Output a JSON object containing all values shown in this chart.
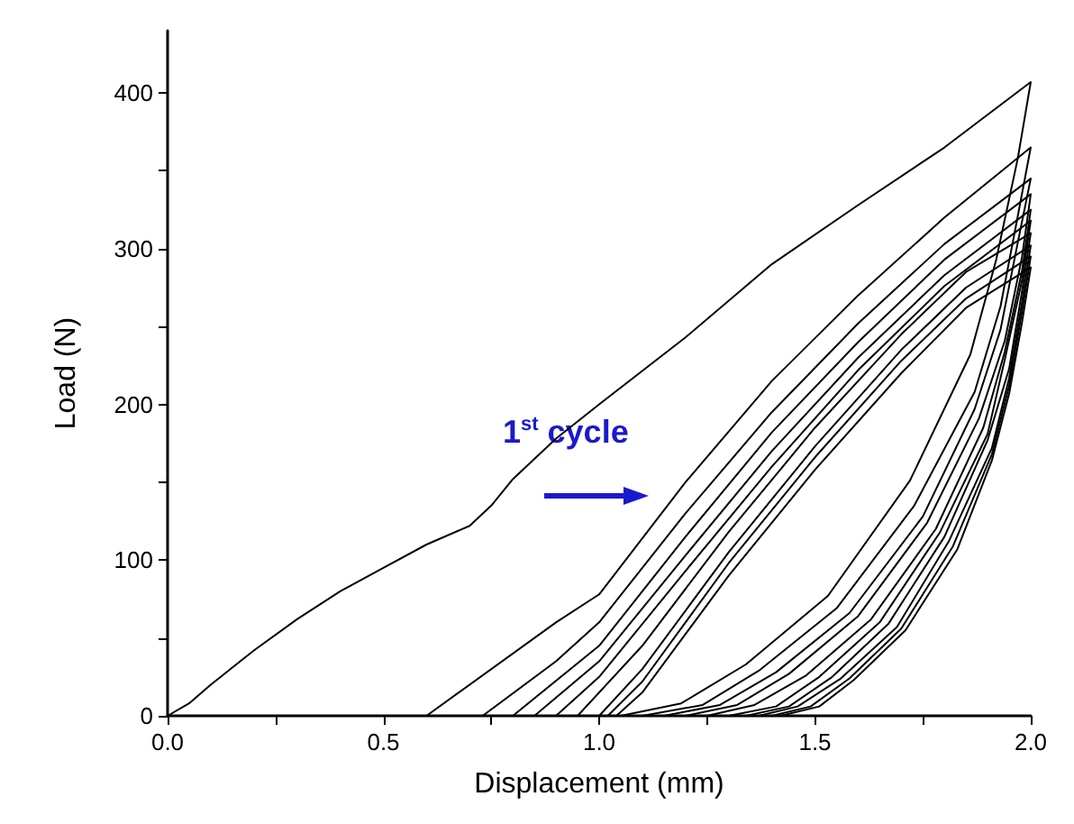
{
  "chart_data": {
    "type": "line",
    "xlabel": "Displacement (mm)",
    "ylabel": "Load (N)",
    "xlim": [
      0,
      2
    ],
    "ylim": [
      0,
      440
    ],
    "xticks": [
      {
        "value": 0,
        "label": "0.0"
      },
      {
        "value": 0.25,
        "label": null
      },
      0.5,
      {
        "value": 0.75,
        "label": null
      },
      {
        "value": 1,
        "label": "1.0"
      },
      {
        "value": 1.25,
        "label": null
      },
      1.5,
      {
        "value": 1.75,
        "label": null
      },
      {
        "value": 2,
        "label": "2.0"
      }
    ],
    "yticks": [
      0,
      {
        "value": 50,
        "label": null
      },
      100,
      {
        "value": 150,
        "label": null
      },
      200,
      {
        "value": 250,
        "label": null
      },
      300,
      {
        "value": 350,
        "label": null
      },
      400
    ],
    "grid": false,
    "marker": "none",
    "line_style": "solid",
    "annotations": [
      "1$^{st}$ cycle"
    ],
    "series": [
      {
        "color": "#000000",
        "x": [
          0,
          0.05,
          0.1,
          0.2,
          0.3,
          0.4,
          0.5,
          0.6,
          0.7,
          0.75,
          0.8,
          0.9,
          1.0,
          1.2,
          1.4,
          1.6,
          1.8,
          2.0,
          1.97,
          1.92,
          1.86,
          1.72,
          1.53,
          1.34,
          1.19,
          1.05
        ],
        "values": [
          0,
          8,
          20,
          42,
          62,
          80,
          95,
          110,
          122,
          135,
          152,
          178,
          200,
          243,
          290,
          328,
          365,
          407,
          358,
          293,
          232,
          151,
          77,
          33,
          8,
          0
        ]
      },
      {
        "color": "#000000",
        "x": [
          0.6,
          0.9,
          1.0,
          1.2,
          1.4,
          1.6,
          1.8,
          2.0,
          1.97,
          1.93,
          1.87,
          1.73,
          1.55,
          1.37,
          1.24,
          1.1
        ],
        "values": [
          0,
          60,
          78,
          150,
          215,
          270,
          320,
          365,
          321,
          263,
          208,
          135,
          69,
          29,
          7,
          0
        ]
      },
      {
        "color": "#000000",
        "x": [
          0.73,
          0.9,
          1.0,
          1.2,
          1.4,
          1.6,
          1.8,
          2.0,
          1.97,
          1.93,
          1.87,
          1.75,
          1.58,
          1.41,
          1.28,
          1.15
        ],
        "values": [
          0,
          35,
          60,
          130,
          195,
          252,
          303,
          345,
          304,
          248,
          197,
          128,
          66,
          28,
          7,
          0
        ]
      },
      {
        "color": "#000000",
        "x": [
          0.8,
          1.0,
          1.2,
          1.4,
          1.6,
          1.8,
          2.0,
          1.98,
          1.94,
          1.88,
          1.76,
          1.6,
          1.44,
          1.32,
          1.2
        ],
        "values": [
          0,
          45,
          115,
          182,
          240,
          293,
          335,
          295,
          241,
          191,
          124,
          64,
          27,
          7,
          0
        ]
      },
      {
        "color": "#000000",
        "x": [
          0.85,
          1.0,
          1.2,
          1.4,
          1.6,
          1.8,
          2.0,
          1.98,
          1.94,
          1.89,
          1.78,
          1.63,
          1.48,
          1.36,
          1.25
        ],
        "values": [
          0,
          35,
          103,
          170,
          230,
          283,
          325,
          286,
          234,
          185,
          120,
          62,
          26,
          7,
          0
        ]
      },
      {
        "color": "#000000",
        "x": [
          0.9,
          1.0,
          1.2,
          1.4,
          1.6,
          1.8,
          2.0,
          1.98,
          1.94,
          1.9,
          1.79,
          1.65,
          1.51,
          1.41,
          1.3
        ],
        "values": [
          0,
          25,
          93,
          160,
          222,
          276,
          318,
          280,
          229,
          181,
          118,
          60,
          25,
          6,
          0
        ]
      },
      {
        "color": "#000000",
        "x": [
          0.95,
          1.1,
          1.3,
          1.5,
          1.7,
          1.85,
          2.0,
          1.98,
          1.95,
          1.9,
          1.8,
          1.67,
          1.54,
          1.44,
          1.34
        ],
        "values": [
          0,
          45,
          118,
          185,
          245,
          285,
          310,
          273,
          223,
          177,
          115,
          59,
          25,
          6,
          0
        ]
      },
      {
        "color": "#000000",
        "x": [
          1.0,
          1.1,
          1.3,
          1.5,
          1.7,
          1.85,
          2.0,
          1.98,
          1.95,
          1.91,
          1.81,
          1.69,
          1.56,
          1.46,
          1.37
        ],
        "values": [
          0,
          30,
          105,
          173,
          235,
          275,
          302,
          266,
          217,
          172,
          112,
          57,
          24,
          6,
          0
        ]
      },
      {
        "color": "#000000",
        "x": [
          1.02,
          1.1,
          1.3,
          1.5,
          1.7,
          1.85,
          2.0,
          1.98,
          1.95,
          1.91,
          1.82,
          1.7,
          1.58,
          1.49,
          1.4
        ],
        "values": [
          0,
          22,
          98,
          166,
          228,
          268,
          295,
          260,
          212,
          168,
          109,
          56,
          24,
          6,
          0
        ]
      },
      {
        "color": "#000000",
        "x": [
          1.04,
          1.1,
          1.3,
          1.5,
          1.7,
          1.85,
          2.0,
          1.98,
          1.95,
          1.91,
          1.83,
          1.71,
          1.59,
          1.51,
          1.42
        ],
        "values": [
          0,
          15,
          90,
          158,
          220,
          262,
          288,
          253,
          207,
          164,
          107,
          55,
          23,
          6,
          0
        ]
      }
    ]
  }
}
